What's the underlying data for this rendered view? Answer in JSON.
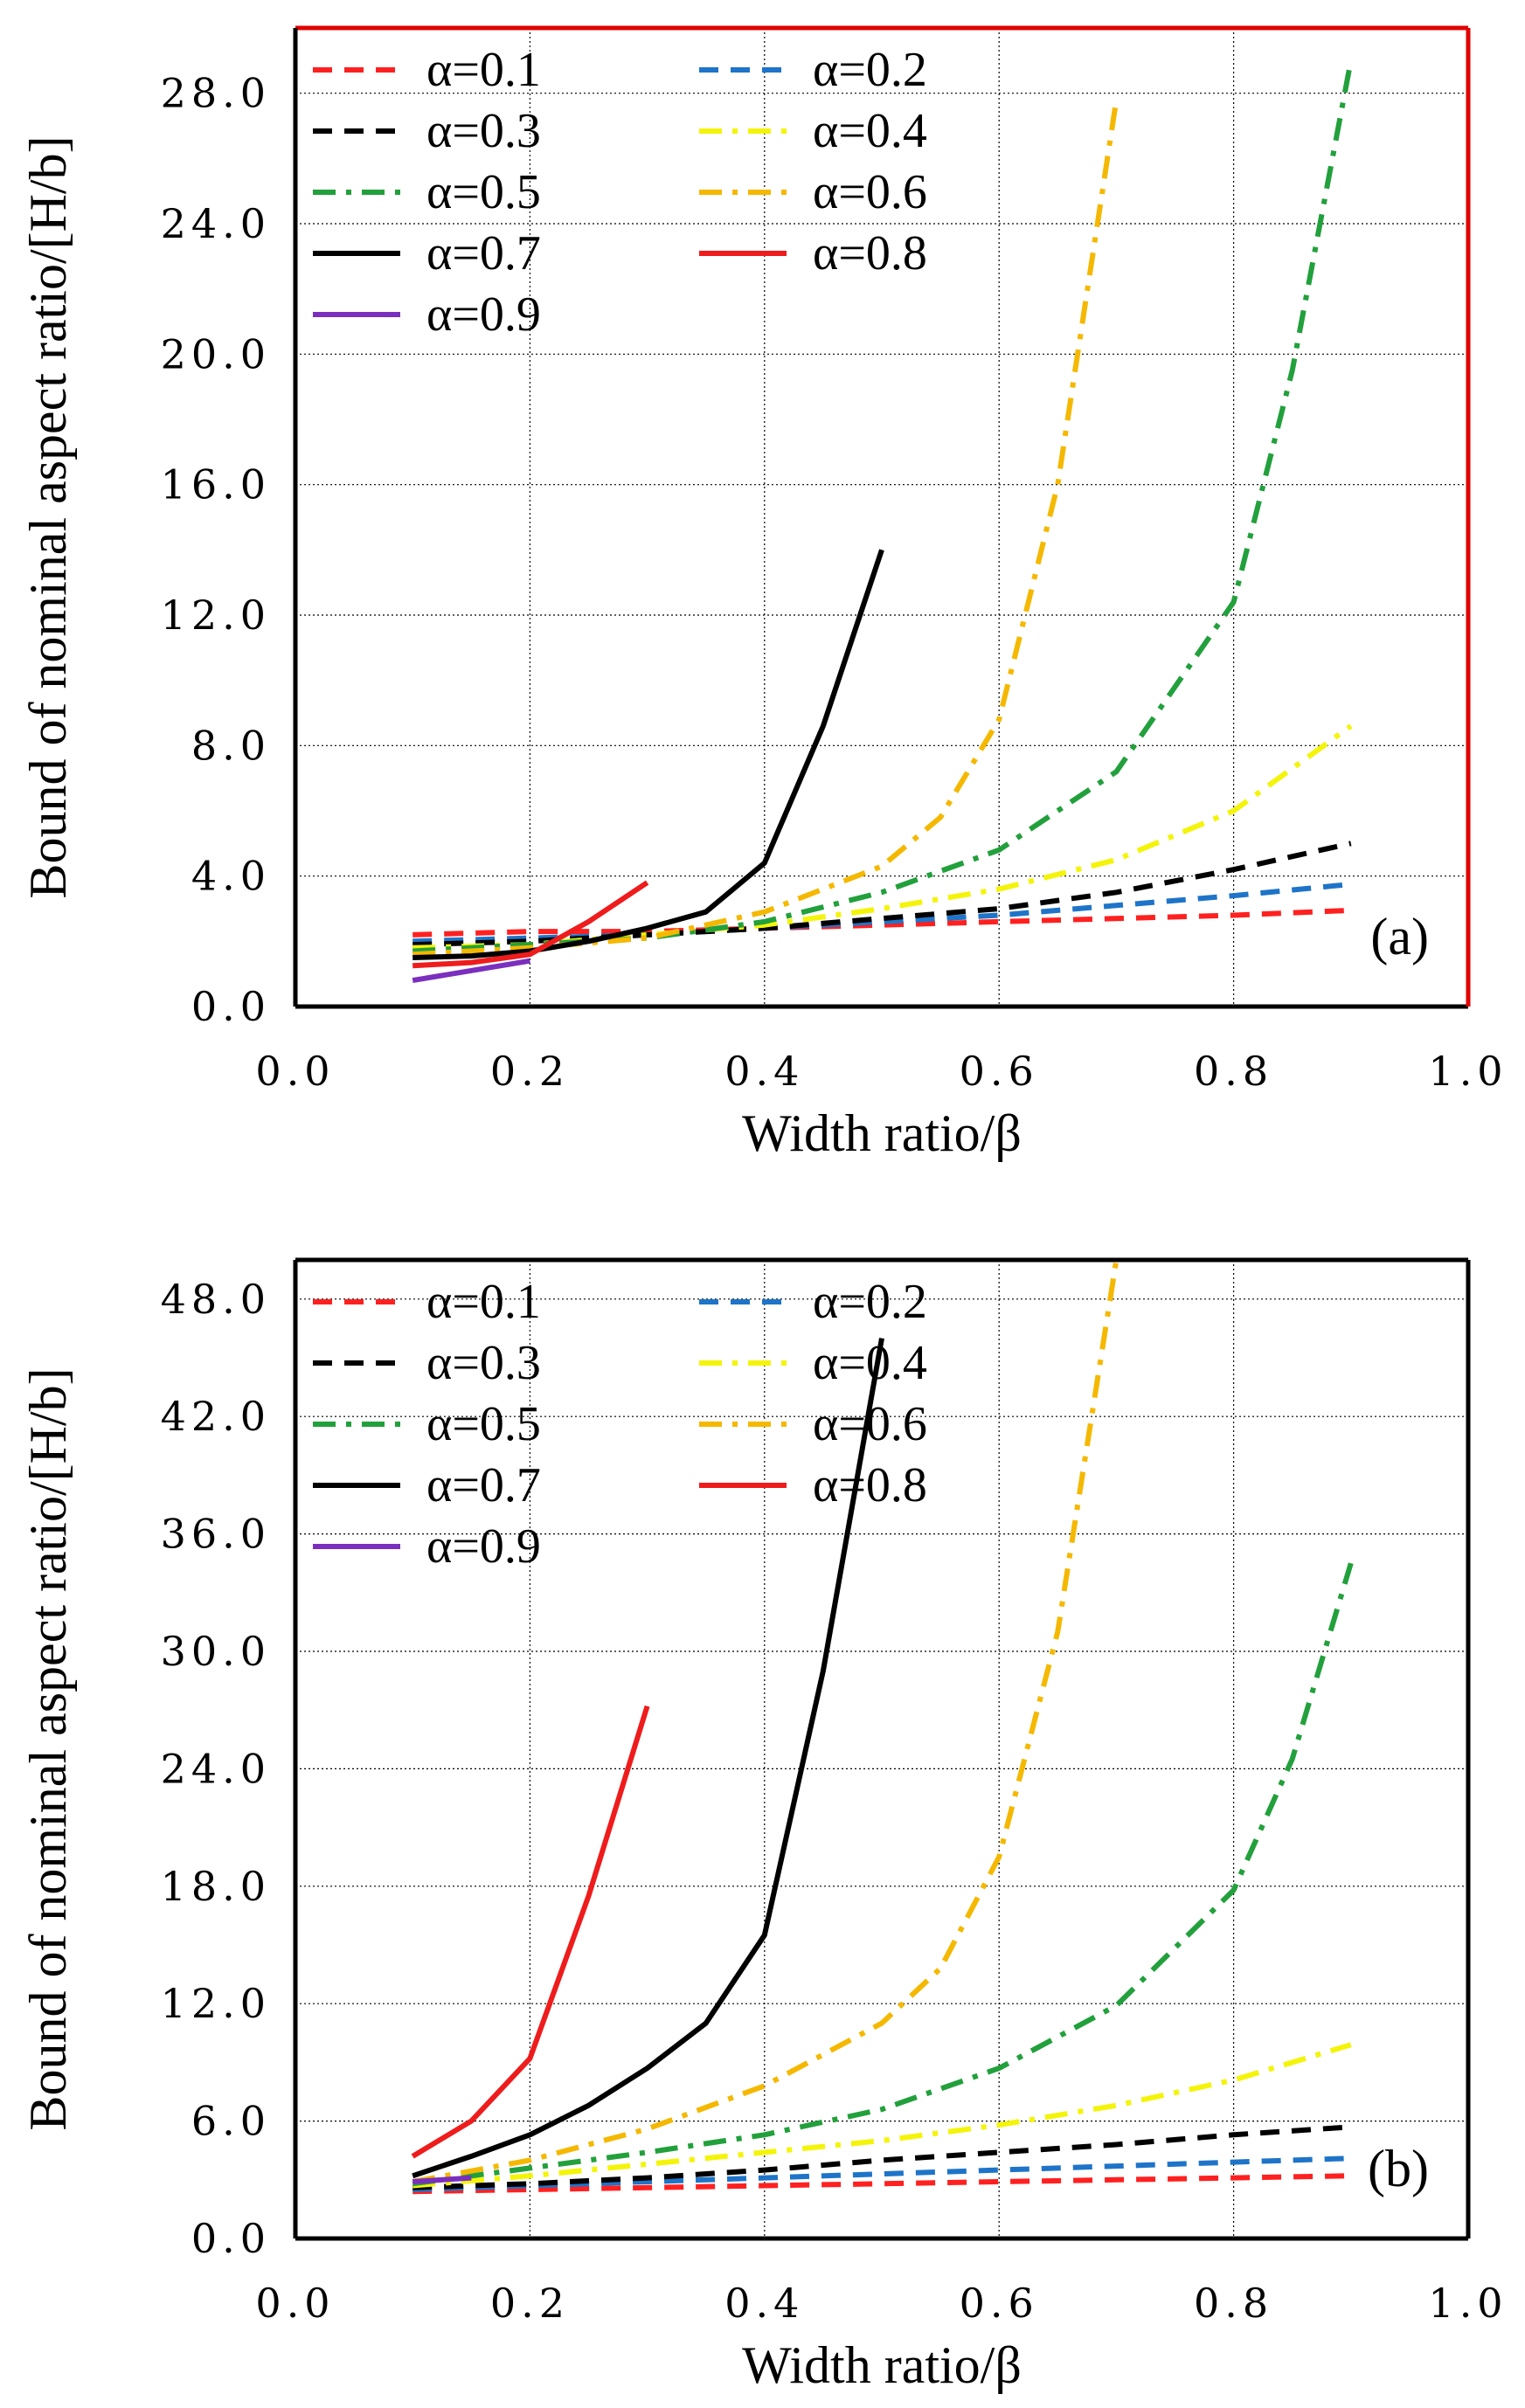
{
  "chart_data": [
    {
      "type": "line",
      "panel_label": "(a)",
      "xlabel": "Width ratio/β",
      "ylabel": "Bound of  nominal aspect ratio/[H/b]",
      "xlim": [
        0.0,
        1.0
      ],
      "ylim": [
        0.0,
        30.0
      ],
      "xticks": [
        "0.0",
        "0.2",
        "0.4",
        "0.6",
        "0.8",
        "1.0"
      ],
      "yticks": [
        "0.0",
        "4.0",
        "8.0",
        "12.0",
        "16.0",
        "20.0",
        "24.0",
        "28.0"
      ],
      "xtick_values": [
        0.0,
        0.2,
        0.4,
        0.6,
        0.8,
        1.0
      ],
      "ytick_values": [
        0.0,
        4.0,
        8.0,
        12.0,
        16.0,
        20.0,
        24.0,
        28.0
      ],
      "grid": true,
      "legend_position": "top-left",
      "series": [
        {
          "name": "α=0.1",
          "color": "#ff2020",
          "style": "dash",
          "x": [
            0.1,
            0.2,
            0.3,
            0.4,
            0.5,
            0.6,
            0.7,
            0.8,
            0.9
          ],
          "y": [
            2.2,
            2.3,
            2.3,
            2.4,
            2.5,
            2.6,
            2.7,
            2.8,
            2.95
          ]
        },
        {
          "name": "α=0.2",
          "color": "#1e74c8",
          "style": "dash",
          "x": [
            0.1,
            0.2,
            0.3,
            0.4,
            0.5,
            0.6,
            0.7,
            0.8,
            0.9
          ],
          "y": [
            2.0,
            2.1,
            2.2,
            2.4,
            2.6,
            2.8,
            3.1,
            3.4,
            3.75
          ]
        },
        {
          "name": "α=0.3",
          "color": "#000000",
          "style": "dash",
          "x": [
            0.1,
            0.2,
            0.3,
            0.4,
            0.5,
            0.6,
            0.7,
            0.8,
            0.9
          ],
          "y": [
            1.9,
            2.0,
            2.2,
            2.4,
            2.7,
            3.0,
            3.5,
            4.2,
            5.0
          ]
        },
        {
          "name": "α=0.4",
          "color": "#f4f40a",
          "style": "dashdot",
          "x": [
            0.1,
            0.2,
            0.3,
            0.4,
            0.5,
            0.6,
            0.7,
            0.8,
            0.9
          ],
          "y": [
            1.8,
            1.9,
            2.2,
            2.5,
            3.0,
            3.6,
            4.5,
            6.0,
            8.6
          ]
        },
        {
          "name": "α=0.5",
          "color": "#22a03c",
          "style": "dashdot",
          "x": [
            0.1,
            0.2,
            0.3,
            0.4,
            0.5,
            0.6,
            0.7,
            0.8,
            0.85,
            0.9
          ],
          "y": [
            1.7,
            1.9,
            2.1,
            2.6,
            3.5,
            4.8,
            7.2,
            12.4,
            19.5,
            29.0
          ]
        },
        {
          "name": "α=0.6",
          "color": "#f5b800",
          "style": "dashdot",
          "x": [
            0.1,
            0.2,
            0.3,
            0.4,
            0.5,
            0.55,
            0.6,
            0.65,
            0.7
          ],
          "y": [
            1.6,
            1.8,
            2.1,
            2.9,
            4.3,
            5.8,
            8.8,
            16.0,
            27.8
          ]
        },
        {
          "name": "α=0.7",
          "color": "#000000",
          "style": "solid",
          "x": [
            0.1,
            0.15,
            0.2,
            0.25,
            0.3,
            0.35,
            0.4,
            0.45,
            0.5
          ],
          "y": [
            1.5,
            1.55,
            1.7,
            2.0,
            2.4,
            2.9,
            4.4,
            8.6,
            14.0
          ]
        },
        {
          "name": "α=0.8",
          "color": "#ee1c1c",
          "style": "solid",
          "x": [
            0.1,
            0.15,
            0.2,
            0.25,
            0.3
          ],
          "y": [
            1.25,
            1.35,
            1.6,
            2.6,
            3.8
          ]
        },
        {
          "name": "α=0.9",
          "color": "#7b2fbe",
          "style": "solid",
          "x": [
            0.1,
            0.2
          ],
          "y": [
            0.8,
            1.4
          ]
        }
      ]
    },
    {
      "type": "line",
      "panel_label": "(b)",
      "xlabel": "Width ratio/β",
      "ylabel": "Bound of  nominal aspect ratio/[H/b]",
      "xlim": [
        0.0,
        1.0
      ],
      "ylim": [
        0.0,
        50.0
      ],
      "xticks": [
        "0.0",
        "0.2",
        "0.4",
        "0.6",
        "0.8",
        "1.0"
      ],
      "yticks": [
        "0.0",
        "6.0",
        "12.0",
        "18.0",
        "24.0",
        "30.0",
        "36.0",
        "42.0",
        "48.0"
      ],
      "xtick_values": [
        0.0,
        0.2,
        0.4,
        0.6,
        0.8,
        1.0
      ],
      "ytick_values": [
        0.0,
        6.0,
        12.0,
        18.0,
        24.0,
        30.0,
        36.0,
        42.0,
        48.0
      ],
      "grid": true,
      "legend_position": "top-left",
      "series": [
        {
          "name": "α=0.1",
          "color": "#ff2020",
          "style": "dash",
          "x": [
            0.1,
            0.2,
            0.3,
            0.4,
            0.5,
            0.6,
            0.7,
            0.8,
            0.9
          ],
          "y": [
            2.4,
            2.5,
            2.6,
            2.7,
            2.8,
            2.9,
            3.0,
            3.1,
            3.2
          ]
        },
        {
          "name": "α=0.2",
          "color": "#1e74c8",
          "style": "dash",
          "x": [
            0.1,
            0.2,
            0.3,
            0.4,
            0.5,
            0.6,
            0.7,
            0.8,
            0.9
          ],
          "y": [
            2.5,
            2.7,
            2.9,
            3.1,
            3.3,
            3.5,
            3.7,
            3.9,
            4.1
          ]
        },
        {
          "name": "α=0.3",
          "color": "#000000",
          "style": "dash",
          "x": [
            0.1,
            0.2,
            0.3,
            0.4,
            0.5,
            0.6,
            0.7,
            0.8,
            0.9
          ],
          "y": [
            2.6,
            2.8,
            3.1,
            3.5,
            4.0,
            4.4,
            4.8,
            5.3,
            5.7
          ]
        },
        {
          "name": "α=0.4",
          "color": "#f4f40a",
          "style": "dashdot",
          "x": [
            0.1,
            0.2,
            0.3,
            0.4,
            0.5,
            0.6,
            0.7,
            0.8,
            0.9
          ],
          "y": [
            2.7,
            3.2,
            3.8,
            4.4,
            5.0,
            5.8,
            6.8,
            8.1,
            9.9
          ]
        },
        {
          "name": "α=0.5",
          "color": "#22a03c",
          "style": "dashdot",
          "x": [
            0.1,
            0.2,
            0.3,
            0.4,
            0.5,
            0.6,
            0.7,
            0.8,
            0.85,
            0.9
          ],
          "y": [
            2.8,
            3.6,
            4.4,
            5.3,
            6.6,
            8.7,
            11.9,
            17.8,
            24.5,
            34.5
          ]
        },
        {
          "name": "α=0.6",
          "color": "#f5b800",
          "style": "dashdot",
          "x": [
            0.1,
            0.2,
            0.3,
            0.4,
            0.5,
            0.55,
            0.6,
            0.65,
            0.7
          ],
          "y": [
            2.9,
            4.0,
            5.6,
            7.8,
            11.0,
            13.8,
            19.5,
            31.0,
            50.0
          ]
        },
        {
          "name": "α=0.7",
          "color": "#000000",
          "style": "solid",
          "x": [
            0.1,
            0.15,
            0.2,
            0.25,
            0.3,
            0.35,
            0.4,
            0.45,
            0.5
          ],
          "y": [
            3.2,
            4.2,
            5.3,
            6.8,
            8.7,
            11.0,
            15.5,
            29.0,
            46.0
          ]
        },
        {
          "name": "α=0.8",
          "color": "#ee1c1c",
          "style": "solid",
          "x": [
            0.1,
            0.15,
            0.2,
            0.25,
            0.3
          ],
          "y": [
            4.2,
            6.0,
            9.2,
            17.5,
            27.2
          ]
        },
        {
          "name": "α=0.9",
          "color": "#7b2fbe",
          "style": "solid",
          "x": [
            0.1,
            0.15
          ],
          "y": [
            2.9,
            3.1
          ]
        }
      ]
    }
  ],
  "panels_meta": [
    {
      "legend_rows": [
        [
          "α=0.1",
          "α=0.2"
        ],
        [
          "α=0.3",
          "α=0.4"
        ],
        [
          "α=0.5",
          "α=0.6"
        ],
        [
          "α=0.7",
          "α=0.8"
        ],
        [
          "α=0.9"
        ]
      ]
    },
    {
      "legend_rows": [
        [
          "α=0.1",
          "α=0.2"
        ],
        [
          "α=0.3",
          "α=0.4"
        ],
        [
          "α=0.5",
          "α=0.6"
        ],
        [
          "α=0.7",
          "α=0.8"
        ],
        [
          "α=0.9"
        ]
      ]
    }
  ],
  "colors": {
    "frame_a_right": "#e00000",
    "frame": "#000000",
    "grid": "#000000"
  }
}
